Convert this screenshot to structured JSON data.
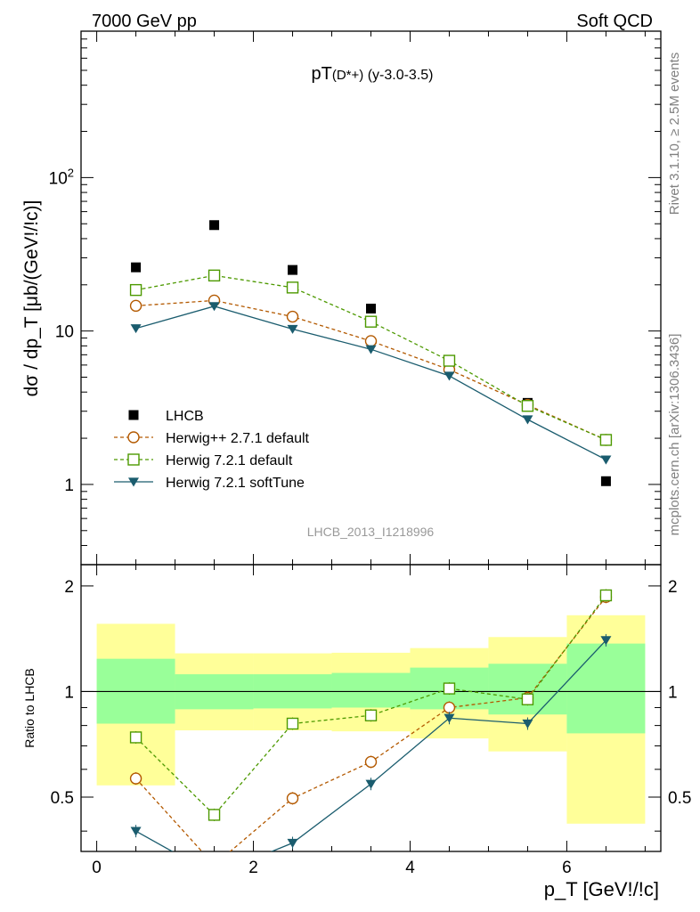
{
  "header": {
    "left": "7000 GeV pp",
    "right": "Soft QCD"
  },
  "side_text": {
    "rivet": "Rivet 3.1.10, ≥ 2.5M events",
    "mcplots": "mcplots.cern.ch [arXiv:1306.3436]"
  },
  "chart_data": {
    "type": "scatter",
    "title": {
      "main": "pT",
      "sub": "(D*+)",
      "rest": " (y-3.0-3.5)"
    },
    "analysis_id": "LHCB_2013_I1218996",
    "xlabel": "p_T [GeV!/!c]",
    "ylabel_main": "dσ / dp_T [μb/(GeV!/!c)]",
    "ylabel_ratio": "Ratio to LHCB",
    "xlim": [
      -0.2,
      7.2
    ],
    "ylim_main": [
      0.3,
      900
    ],
    "ylim_ratio": [
      0.35,
      2.3
    ],
    "yscale": "log",
    "x_ticks": [
      "0",
      "2",
      "4",
      "6"
    ],
    "y_ticks_main": [
      "1",
      "10",
      "10^2"
    ],
    "y_ticks_ratio": [
      "0.5",
      "1",
      "2"
    ],
    "legend_position": "lower-left",
    "x": [
      0.5,
      1.5,
      2.5,
      3.5,
      4.5,
      5.5,
      6.5
    ],
    "bin_edges": [
      0,
      1,
      2,
      3,
      4,
      5,
      6,
      7
    ],
    "series": [
      {
        "name": "LHCB",
        "marker": "filled-square",
        "color": "#000000",
        "values": [
          26,
          49,
          25,
          14,
          6.2,
          3.4,
          1.05
        ]
      },
      {
        "name": "Herwig++ 2.7.1 default",
        "marker": "open-circle",
        "color": "#b35900",
        "values": [
          14.6,
          15.8,
          12.4,
          8.6,
          5.6,
          3.3,
          1.95
        ],
        "ratio": [
          0.565,
          0.32,
          0.496,
          0.63,
          0.9,
          0.96,
          1.86
        ]
      },
      {
        "name": "Herwig 7.2.1 default",
        "marker": "open-square",
        "color": "#4d9900",
        "values": [
          18.5,
          23,
          19.2,
          11.5,
          6.4,
          3.25,
          1.95
        ],
        "ratio": [
          0.74,
          0.445,
          0.81,
          0.855,
          1.02,
          0.95,
          1.88
        ]
      },
      {
        "name": "Herwig 7.2.1 softTune",
        "marker": "filled-triangle-down",
        "color": "#1a5c6e",
        "values": [
          10.4,
          14.5,
          10.3,
          7.6,
          5.1,
          2.65,
          1.45
        ],
        "ratio": [
          0.4,
          0.3,
          0.37,
          0.545,
          0.84,
          0.81,
          1.4
        ]
      }
    ],
    "uncertainty_bands": {
      "stat_color": "#99ff99",
      "total_color": "#ffff99",
      "stat": [
        [
          0.81,
          1.24
        ],
        [
          0.89,
          1.12
        ],
        [
          0.895,
          1.12
        ],
        [
          0.9,
          1.13
        ],
        [
          0.89,
          1.17
        ],
        [
          0.86,
          1.2
        ],
        [
          0.76,
          1.37
        ]
      ],
      "total": [
        [
          0.54,
          1.56
        ],
        [
          0.775,
          1.285
        ],
        [
          0.775,
          1.285
        ],
        [
          0.77,
          1.29
        ],
        [
          0.735,
          1.33
        ],
        [
          0.675,
          1.43
        ],
        [
          0.42,
          1.65
        ]
      ]
    }
  }
}
